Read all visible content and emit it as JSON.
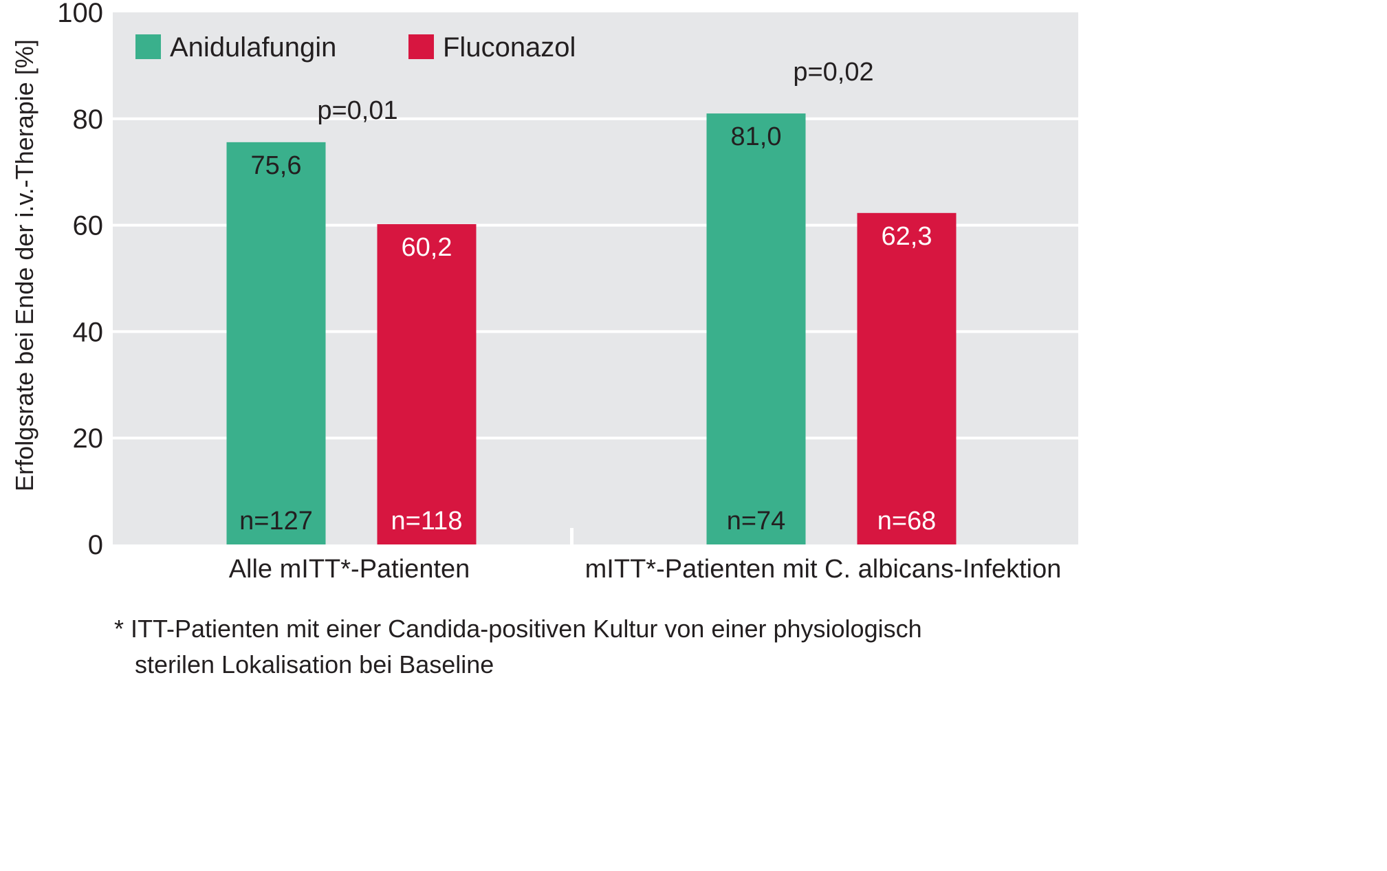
{
  "chart_data": {
    "type": "bar",
    "ylabel": "Erfolgsrate bei Ende der i.v.-Therapie [%]",
    "ylim": [
      0,
      100
    ],
    "yticks": [
      "0",
      "20",
      "40",
      "60",
      "80",
      "100"
    ],
    "grid": true,
    "legend_position": "top-left",
    "categories": [
      "Alle mITT*-Patienten",
      "mITT*-Patienten mit C. albicans-Infektion"
    ],
    "series": [
      {
        "name": "Anidulafungin",
        "color": "#3ab08c",
        "values": [
          75.6,
          81.0
        ],
        "labels": [
          "75,6",
          "81,0"
        ],
        "n_labels": [
          "n=127",
          "n=74"
        ]
      },
      {
        "name": "Fluconazol",
        "color": "#d71640",
        "values": [
          60.2,
          62.3
        ],
        "labels": [
          "60,2",
          "62,3"
        ],
        "n_labels": [
          "n=118",
          "n=68"
        ]
      }
    ],
    "p_values": [
      "p=0,01",
      "p=0,02"
    ]
  },
  "footnote": {
    "line1": "* ITT-Patienten mit einer Candida-positiven Kultur von einer physiologisch",
    "line2": "sterilen Lokalisation bei Baseline"
  },
  "colors": {
    "plot_background": "#e6e7e9",
    "gridline": "#ffffff",
    "text": "#231f20"
  }
}
